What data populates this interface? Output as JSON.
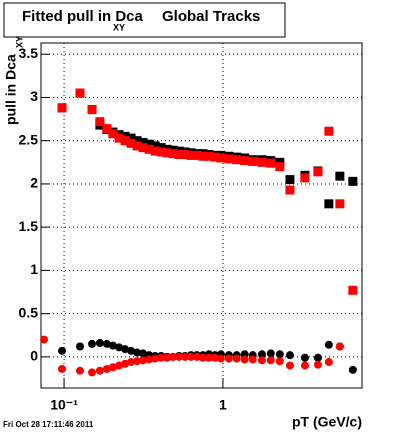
{
  "chart_data": {
    "type": "scatter",
    "title": "Fitted pull in Dca",
    "title_subscript": "XY",
    "title_suffix": "Global Tracks",
    "y_label": "pull in Dca",
    "y_label_subscript": "XY",
    "x_label": "pT (GeV/c)",
    "footer": "Fri Oct 28 17:11:46 2011",
    "xlog": true,
    "grid": true,
    "xlim": [
      0.0716,
      7.5
    ],
    "ylim": [
      -0.36,
      3.63
    ],
    "xticks": [
      {
        "value": 0.1,
        "label": "10⁻¹"
      },
      1
    ],
    "yticks": [
      0,
      0.5,
      1,
      1.5,
      2,
      2.5,
      3,
      3.5
    ],
    "x": [
      0.0748,
      0.0971,
      0.126,
      0.15,
      0.168,
      0.186,
      0.203,
      0.222,
      0.242,
      0.264,
      0.288,
      0.314,
      0.343,
      0.374,
      0.408,
      0.445,
      0.485,
      0.529,
      0.577,
      0.629,
      0.686,
      0.748,
      0.817,
      0.891,
      0.971,
      1.09,
      1.22,
      1.37,
      1.54,
      1.76,
      2.0,
      2.28,
      2.64,
      3.28,
      3.96,
      4.64,
      5.44,
      6.57
    ],
    "series": [
      {
        "color": "#000000",
        "marker": "square",
        "values": [
          null,
          2.88,
          3.05,
          2.86,
          2.68,
          2.63,
          2.6,
          2.57,
          2.55,
          2.53,
          2.5,
          2.48,
          2.46,
          2.44,
          2.42,
          2.4,
          2.39,
          2.38,
          2.37,
          2.36,
          2.35,
          2.35,
          2.34,
          2.33,
          2.33,
          2.32,
          2.31,
          2.3,
          2.28,
          2.28,
          2.27,
          2.25,
          2.05,
          2.1,
          2.15,
          1.77,
          2.09,
          2.03
        ]
      },
      {
        "color": "#ff0000",
        "marker": "square",
        "values": [
          null,
          2.88,
          3.05,
          2.86,
          2.72,
          2.64,
          2.58,
          2.53,
          2.5,
          2.47,
          2.44,
          2.42,
          2.4,
          2.38,
          2.37,
          2.36,
          2.35,
          2.34,
          2.34,
          2.33,
          2.33,
          2.32,
          2.32,
          2.31,
          2.3,
          2.29,
          2.28,
          2.27,
          2.26,
          2.25,
          2.24,
          2.2,
          1.93,
          2.07,
          2.14,
          2.61,
          1.77,
          0.77
        ]
      },
      {
        "color": "#000000",
        "marker": "circle",
        "values": [
          null,
          0.07,
          0.12,
          0.15,
          0.16,
          0.15,
          0.13,
          0.11,
          0.09,
          0.07,
          0.05,
          0.04,
          0.02,
          0.01,
          0.01,
          0.0,
          0.0,
          0.01,
          0.01,
          0.02,
          0.02,
          0.02,
          0.03,
          0.02,
          0.03,
          0.02,
          0.02,
          0.03,
          0.02,
          0.03,
          0.04,
          0.03,
          0.02,
          -0.01,
          -0.01,
          0.14,
          0.12,
          -0.15
        ]
      },
      {
        "color": "#ff0000",
        "marker": "circle",
        "values": [
          0.2,
          -0.14,
          -0.16,
          -0.18,
          -0.16,
          -0.14,
          -0.12,
          -0.1,
          -0.08,
          -0.06,
          -0.05,
          -0.04,
          -0.03,
          -0.02,
          -0.01,
          -0.01,
          0.0,
          0.0,
          0.0,
          0.0,
          0.0,
          -0.01,
          -0.01,
          -0.01,
          -0.02,
          -0.02,
          -0.02,
          -0.03,
          -0.03,
          -0.04,
          -0.04,
          -0.05,
          -0.1,
          -0.1,
          -0.09,
          -0.06,
          0.12,
          null
        ]
      }
    ]
  }
}
